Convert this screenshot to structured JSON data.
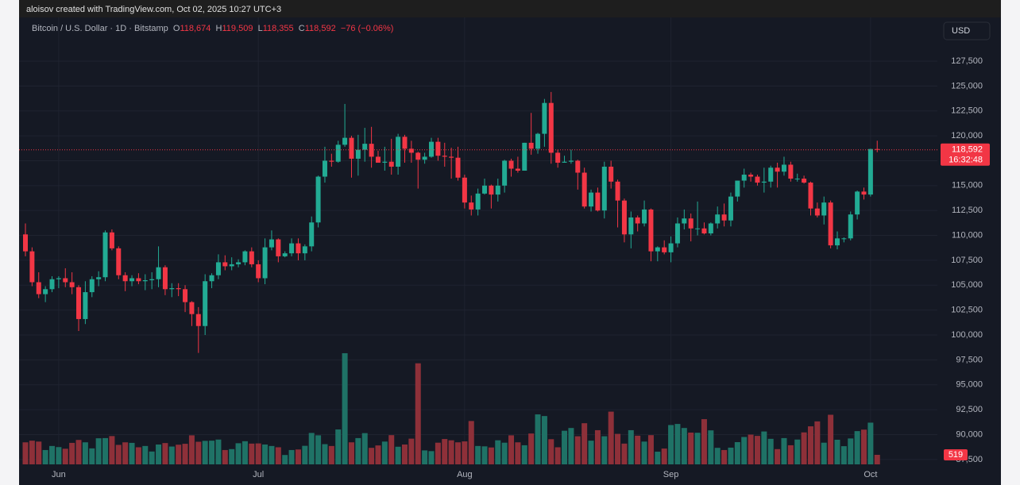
{
  "chart_data": {
    "type": "candlestick",
    "attribution": "aloisov created with TradingView.com, Oct 02, 2025 10:27 UTC+3",
    "symbol": "Bitcoin / U.S. Dollar · 1D · Bitstamp",
    "ohlc_header": [
      {
        "key": "O",
        "value": "118,674"
      },
      {
        "key": "H",
        "value": "119,509"
      },
      {
        "key": "L",
        "value": "118,355"
      },
      {
        "key": "C",
        "value": "118,592"
      }
    ],
    "change": "−76 (−0.06%)",
    "currency": "USD",
    "categories": [
      null,
      null,
      null,
      null,
      null,
      "Jun",
      null,
      null,
      null,
      null,
      null,
      null,
      null,
      null,
      null,
      null,
      null,
      null,
      null,
      null,
      null,
      null,
      null,
      null,
      null,
      null,
      null,
      null,
      null,
      null,
      null,
      null,
      null,
      null,
      null,
      "Jul",
      null,
      null,
      null,
      null,
      null,
      null,
      null,
      null,
      null,
      null,
      null,
      null,
      null,
      null,
      null,
      null,
      null,
      null,
      null,
      null,
      null,
      null,
      null,
      null,
      null,
      null,
      null,
      null,
      null,
      null,
      "Aug",
      null,
      null,
      null,
      null,
      null,
      null,
      null,
      null,
      null,
      null,
      null,
      null,
      null,
      null,
      null,
      null,
      null,
      null,
      null,
      null,
      null,
      null,
      null,
      null,
      null,
      null,
      null,
      null,
      null,
      null,
      "Sep",
      null,
      null,
      null,
      null,
      null,
      null,
      null,
      null,
      null,
      null,
      null,
      null,
      null,
      null,
      null,
      null,
      null,
      null,
      null,
      null,
      null,
      null,
      null,
      null,
      null,
      null,
      null,
      null,
      null,
      "Oct",
      null
    ],
    "open": [
      110100,
      108400,
      105300,
      104100,
      104600,
      105600,
      105700,
      105300,
      104800,
      101600,
      104300,
      105600,
      105800,
      110300,
      108700,
      106000,
      105400,
      105700,
      105400,
      105500,
      105600,
      106800,
      104600,
      104700,
      104600,
      103300,
      102100,
      100900,
      105400,
      106000,
      107300,
      106900,
      107100,
      107300,
      108400,
      107100,
      105700,
      108800,
      109600,
      107900,
      108200,
      109200,
      108200,
      108900,
      111300,
      115900,
      117500,
      117400,
      119100,
      119800,
      117700,
      118600,
      119200,
      117900,
      117300,
      117400,
      116900,
      119900,
      118700,
      118300,
      117600,
      117900,
      119400,
      118000,
      117900,
      117800,
      115800,
      113300,
      112600,
      114200,
      115000,
      114100,
      115000,
      117500,
      116700,
      116500,
      119300,
      118700,
      120200,
      123300,
      118300,
      117300,
      117400,
      117500,
      116300,
      112900,
      114300,
      112500,
      116900,
      115400,
      113500,
      110100,
      111800,
      111200,
      112600,
      108400,
      108800,
      108300,
      109200,
      111200,
      111700,
      110700,
      110700,
      110200,
      111200,
      112100,
      111500,
      113900,
      115500,
      116100,
      115900,
      115300,
      115400,
      116800,
      116400,
      117100,
      115700,
      115700,
      115300,
      112700,
      112000,
      113300,
      109000,
      109700,
      109700,
      112100,
      114400,
      114100,
      118674
    ],
    "high": [
      111200,
      108800,
      106300,
      104900,
      105900,
      105900,
      106700,
      106300,
      105000,
      105400,
      105900,
      106400,
      110500,
      110600,
      108900,
      106300,
      106000,
      106200,
      106100,
      106300,
      108900,
      107000,
      105200,
      105200,
      105000,
      103400,
      102800,
      106100,
      106200,
      108100,
      108000,
      107800,
      107600,
      108500,
      108800,
      107500,
      109700,
      110500,
      109700,
      108400,
      109700,
      109700,
      109100,
      111900,
      116000,
      118900,
      118200,
      119500,
      123200,
      120000,
      120100,
      120800,
      120900,
      118500,
      118900,
      119700,
      120200,
      120100,
      119500,
      118400,
      118300,
      119800,
      119800,
      119300,
      118800,
      118900,
      116100,
      114000,
      114700,
      115700,
      115100,
      115700,
      117600,
      117700,
      117900,
      119300,
      122300,
      120300,
      123700,
      124400,
      118600,
      118000,
      118600,
      117600,
      116800,
      114600,
      114800,
      117400,
      117500,
      115600,
      113700,
      112400,
      112000,
      113500,
      112700,
      108900,
      109500,
      109900,
      111800,
      112600,
      112200,
      113400,
      111300,
      111300,
      112900,
      113200,
      114300,
      115500,
      116700,
      116300,
      116100,
      116800,
      117000,
      117300,
      117900,
      117400,
      116200,
      116000,
      115400,
      113300,
      113900,
      113500,
      110400,
      109800,
      112400,
      114500,
      114800,
      118700,
      119509
    ],
    "low": [
      107900,
      104900,
      103700,
      103300,
      104300,
      104700,
      104800,
      104100,
      100400,
      101100,
      103800,
      104900,
      105400,
      108500,
      105600,
      104400,
      104900,
      105100,
      104500,
      104600,
      104800,
      104000,
      103800,
      103900,
      102300,
      100900,
      98200,
      100000,
      104700,
      105600,
      106500,
      106500,
      106800,
      107000,
      106800,
      105300,
      105100,
      108500,
      107300,
      107800,
      107900,
      107500,
      107500,
      108400,
      110800,
      115300,
      116900,
      117300,
      118900,
      115800,
      116000,
      117400,
      116800,
      117300,
      116500,
      116100,
      116100,
      117300,
      117300,
      114700,
      117200,
      117800,
      117500,
      116900,
      115700,
      115500,
      112700,
      112000,
      112000,
      114100,
      112700,
      113400,
      114300,
      115900,
      116300,
      116500,
      118100,
      118200,
      118900,
      117200,
      116800,
      117300,
      117200,
      114600,
      112700,
      112400,
      112400,
      111700,
      114700,
      110800,
      109300,
      108700,
      110400,
      110900,
      107400,
      107400,
      108100,
      107300,
      108800,
      110600,
      109400,
      110000,
      110100,
      110000,
      110700,
      110900,
      110900,
      113400,
      114800,
      115400,
      115000,
      114300,
      114800,
      114800,
      116000,
      115400,
      115400,
      115200,
      112000,
      111800,
      111100,
      108700,
      108600,
      109300,
      109500,
      111600,
      113600,
      113900,
      118355
    ],
    "close": [
      108400,
      105300,
      104100,
      104600,
      105600,
      105700,
      105300,
      104800,
      101600,
      104300,
      105600,
      105800,
      110300,
      108700,
      106000,
      105400,
      105700,
      105400,
      105500,
      105600,
      106800,
      104600,
      104700,
      104600,
      103300,
      102100,
      100900,
      105400,
      106000,
      107300,
      106900,
      107100,
      107300,
      108400,
      107100,
      105700,
      108800,
      109600,
      107900,
      108200,
      109200,
      108200,
      108900,
      111300,
      115900,
      117500,
      117400,
      119100,
      119800,
      117700,
      118600,
      119200,
      117900,
      117300,
      117400,
      116900,
      119900,
      118700,
      118300,
      117600,
      117900,
      119400,
      118000,
      117900,
      117800,
      115800,
      113300,
      112600,
      114200,
      115000,
      114100,
      115000,
      117500,
      116700,
      116500,
      119300,
      118700,
      120200,
      123300,
      118300,
      117300,
      117400,
      117500,
      116300,
      112900,
      114300,
      112500,
      116900,
      115400,
      113500,
      110100,
      111800,
      111200,
      112600,
      108400,
      108800,
      108300,
      109200,
      111200,
      111700,
      110700,
      110700,
      110200,
      111200,
      112100,
      111500,
      113900,
      115500,
      116100,
      115900,
      115300,
      115400,
      116800,
      116400,
      117100,
      115700,
      115700,
      115300,
      112700,
      112000,
      113300,
      109000,
      109700,
      109700,
      112100,
      114400,
      114100,
      118674,
      118592
    ],
    "up_color": "#22ab94",
    "down_color": "#f23645",
    "volume": {
      "values": [
        1200,
        1290,
        1240,
        780,
        1000,
        940,
        850,
        1170,
        1330,
        1200,
        870,
        1420,
        1430,
        1540,
        1060,
        1200,
        1170,
        930,
        1000,
        700,
        1080,
        1160,
        970,
        1070,
        1120,
        1580,
        1230,
        1280,
        1290,
        1350,
        780,
        830,
        1150,
        1260,
        1130,
        1140,
        1080,
        1000,
        930,
        510,
        780,
        810,
        1010,
        1710,
        1580,
        1100,
        1000,
        1900,
        6050,
        1200,
        1430,
        1700,
        900,
        1030,
        1240,
        1590,
        960,
        1080,
        1400,
        5500,
        760,
        720,
        1180,
        1380,
        1310,
        1200,
        1250,
        2360,
        1000,
        980,
        920,
        1310,
        1180,
        1580,
        1200,
        1040,
        1680,
        2720,
        2630,
        1370,
        930,
        1830,
        1980,
        1530,
        2240,
        1290,
        1860,
        1530,
        2870,
        1660,
        1130,
        1860,
        1560,
        1240,
        1590,
        690,
        860,
        2140,
        2200,
        1980,
        1730,
        1720,
        2460,
        1850,
        900,
        780,
        910,
        1210,
        1490,
        1620,
        1550,
        1790,
        1390,
        830,
        1430,
        1040,
        1350,
        1740,
        2070,
        2340,
        1180,
        2700,
        1340,
        990,
        1410,
        1810,
        1890,
        2270,
        519
      ],
      "ylim": [
        0,
        23200
      ],
      "up_color": "#1f7266",
      "down_color": "#8e3039"
    },
    "ylim": [
      87010,
      129810
    ],
    "yticks": [
      {
        "value": 87500,
        "label": "87,500"
      },
      {
        "value": 90000,
        "label": "90,000"
      },
      {
        "value": 92500,
        "label": "92,500"
      },
      {
        "value": 95000,
        "label": "95,000"
      },
      {
        "value": 97500,
        "label": "97,500"
      },
      {
        "value": 100000,
        "label": "100,000"
      },
      {
        "value": 102500,
        "label": "102,500"
      },
      {
        "value": 105000,
        "label": "105,000"
      },
      {
        "value": 107500,
        "label": "107,500"
      },
      {
        "value": 110000,
        "label": "110,000"
      },
      {
        "value": 112500,
        "label": "112,500"
      },
      {
        "value": 115000,
        "label": "115,000"
      },
      {
        "value": 117500,
        "label": "117,500"
      },
      {
        "value": 120000,
        "label": "120,000"
      },
      {
        "value": 122500,
        "label": "122,500"
      },
      {
        "value": 125000,
        "label": "125,000"
      },
      {
        "value": 127500,
        "label": "127,500"
      }
    ],
    "last_price": {
      "value": 118592,
      "label": "118,592"
    },
    "countdown": "16:32:48",
    "grid": true
  }
}
